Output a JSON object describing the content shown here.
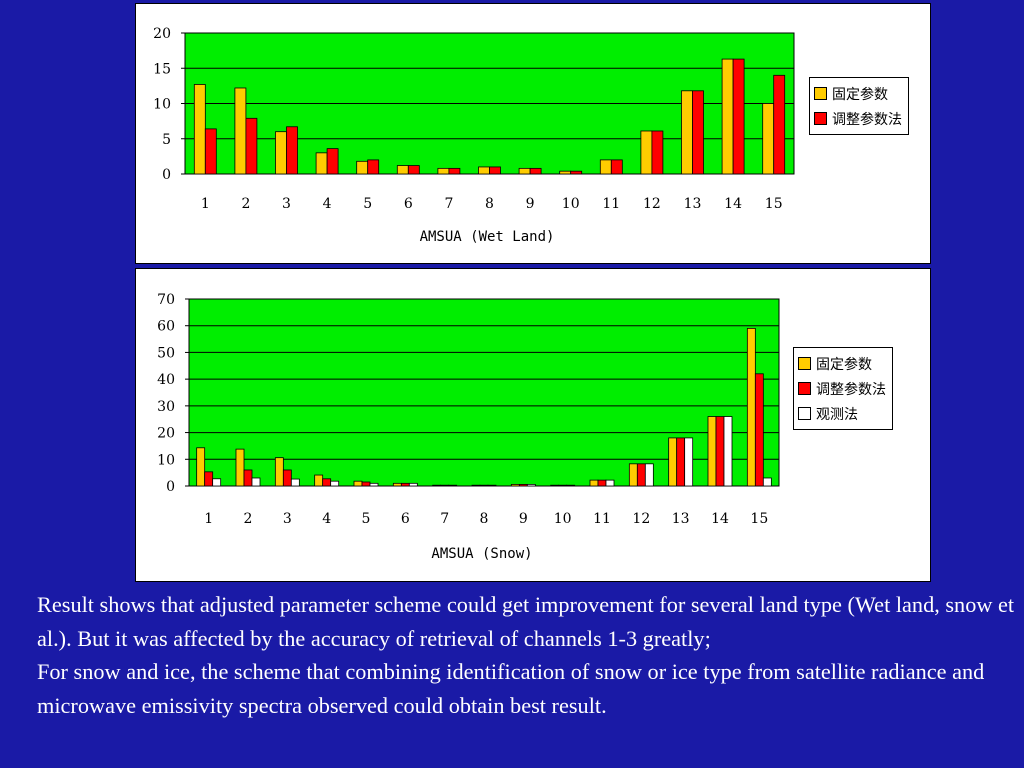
{
  "chart_data": [
    {
      "type": "bar",
      "xlabel": "AMSUA (Wet Land)",
      "categories": [
        "1",
        "2",
        "3",
        "4",
        "5",
        "6",
        "7",
        "8",
        "9",
        "10",
        "11",
        "12",
        "13",
        "14",
        "15"
      ],
      "yticks": [
        0,
        5,
        10,
        15,
        20
      ],
      "ylim": [
        0,
        20
      ],
      "grid": true,
      "legend_position": "right",
      "plot_background": "#00ee00",
      "series": [
        {
          "name": "固定参数",
          "color": "#ffcc00",
          "values": [
            12.7,
            12.2,
            6.0,
            3.0,
            1.8,
            1.2,
            0.8,
            1.0,
            0.8,
            0.4,
            2.0,
            6.1,
            11.8,
            16.3,
            10.0
          ]
        },
        {
          "name": "调整参数法",
          "color": "#ff0000",
          "values": [
            6.4,
            7.9,
            6.7,
            3.6,
            2.0,
            1.2,
            0.8,
            1.0,
            0.8,
            0.4,
            2.0,
            6.1,
            11.8,
            16.3,
            14.0
          ]
        }
      ]
    },
    {
      "type": "bar",
      "xlabel": "AMSUA (Snow)",
      "categories": [
        "1",
        "2",
        "3",
        "4",
        "5",
        "6",
        "7",
        "8",
        "9",
        "10",
        "11",
        "12",
        "13",
        "14",
        "15"
      ],
      "yticks": [
        0,
        10,
        20,
        30,
        40,
        50,
        60,
        70
      ],
      "ylim": [
        0,
        70
      ],
      "grid": true,
      "legend_position": "right",
      "plot_background": "#00ee00",
      "series": [
        {
          "name": "固定参数",
          "color": "#ffcc00",
          "values": [
            14.3,
            13.8,
            10.6,
            4.1,
            1.8,
            1.0,
            0.3,
            0.3,
            0.6,
            0.3,
            2.2,
            8.3,
            18.0,
            26.0,
            59.0
          ]
        },
        {
          "name": "调整参数法",
          "color": "#ff0000",
          "values": [
            5.3,
            6.0,
            6.0,
            2.7,
            1.5,
            1.0,
            0.3,
            0.3,
            0.6,
            0.3,
            2.2,
            8.3,
            18.0,
            26.0,
            42.0
          ]
        },
        {
          "name": "观测法",
          "color": "#ffffff",
          "values": [
            2.7,
            3.0,
            2.6,
            1.8,
            1.0,
            1.0,
            0.3,
            0.3,
            0.6,
            0.3,
            2.2,
            8.3,
            18.0,
            26.0,
            3.0
          ]
        }
      ]
    }
  ],
  "caption": {
    "line1": "Result shows that adjusted parameter scheme could get improvement for several land type (Wet land, snow et al.). But it was affected by the accuracy of retrieval of channels 1-3 greatly;",
    "line2": "For snow and ice, the scheme that combining identification of snow or ice type from satellite radiance and microwave emissivity spectra observed could obtain best result."
  }
}
